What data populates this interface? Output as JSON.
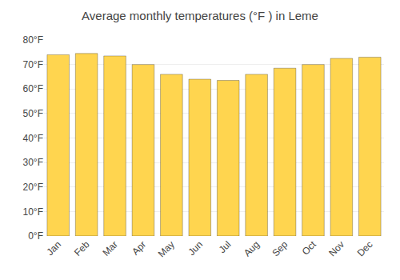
{
  "chart_data": {
    "type": "bar",
    "title": "Average monthly temperatures (°F ) in Leme",
    "categories": [
      "Jan",
      "Feb",
      "Mar",
      "Apr",
      "May",
      "Jun",
      "Jul",
      "Aug",
      "Sep",
      "Oct",
      "Nov",
      "Dec"
    ],
    "values": [
      74,
      74.5,
      73.5,
      70,
      66,
      64,
      63.5,
      66,
      68.5,
      70,
      72.5,
      73
    ],
    "color": "#FFD54F",
    "ylim": [
      0,
      80
    ],
    "yticks": [
      {
        "value": 0,
        "label": "0°F"
      },
      {
        "value": 10,
        "label": "10°F"
      },
      {
        "value": 20,
        "label": "20°F"
      },
      {
        "value": 30,
        "label": "30°F"
      },
      {
        "value": 40,
        "label": "40°F"
      },
      {
        "value": 50,
        "label": "50°F"
      },
      {
        "value": 60,
        "label": "60°F"
      },
      {
        "value": 70,
        "label": "70°F"
      },
      {
        "value": 80,
        "label": "80°F"
      }
    ],
    "grid": true
  }
}
